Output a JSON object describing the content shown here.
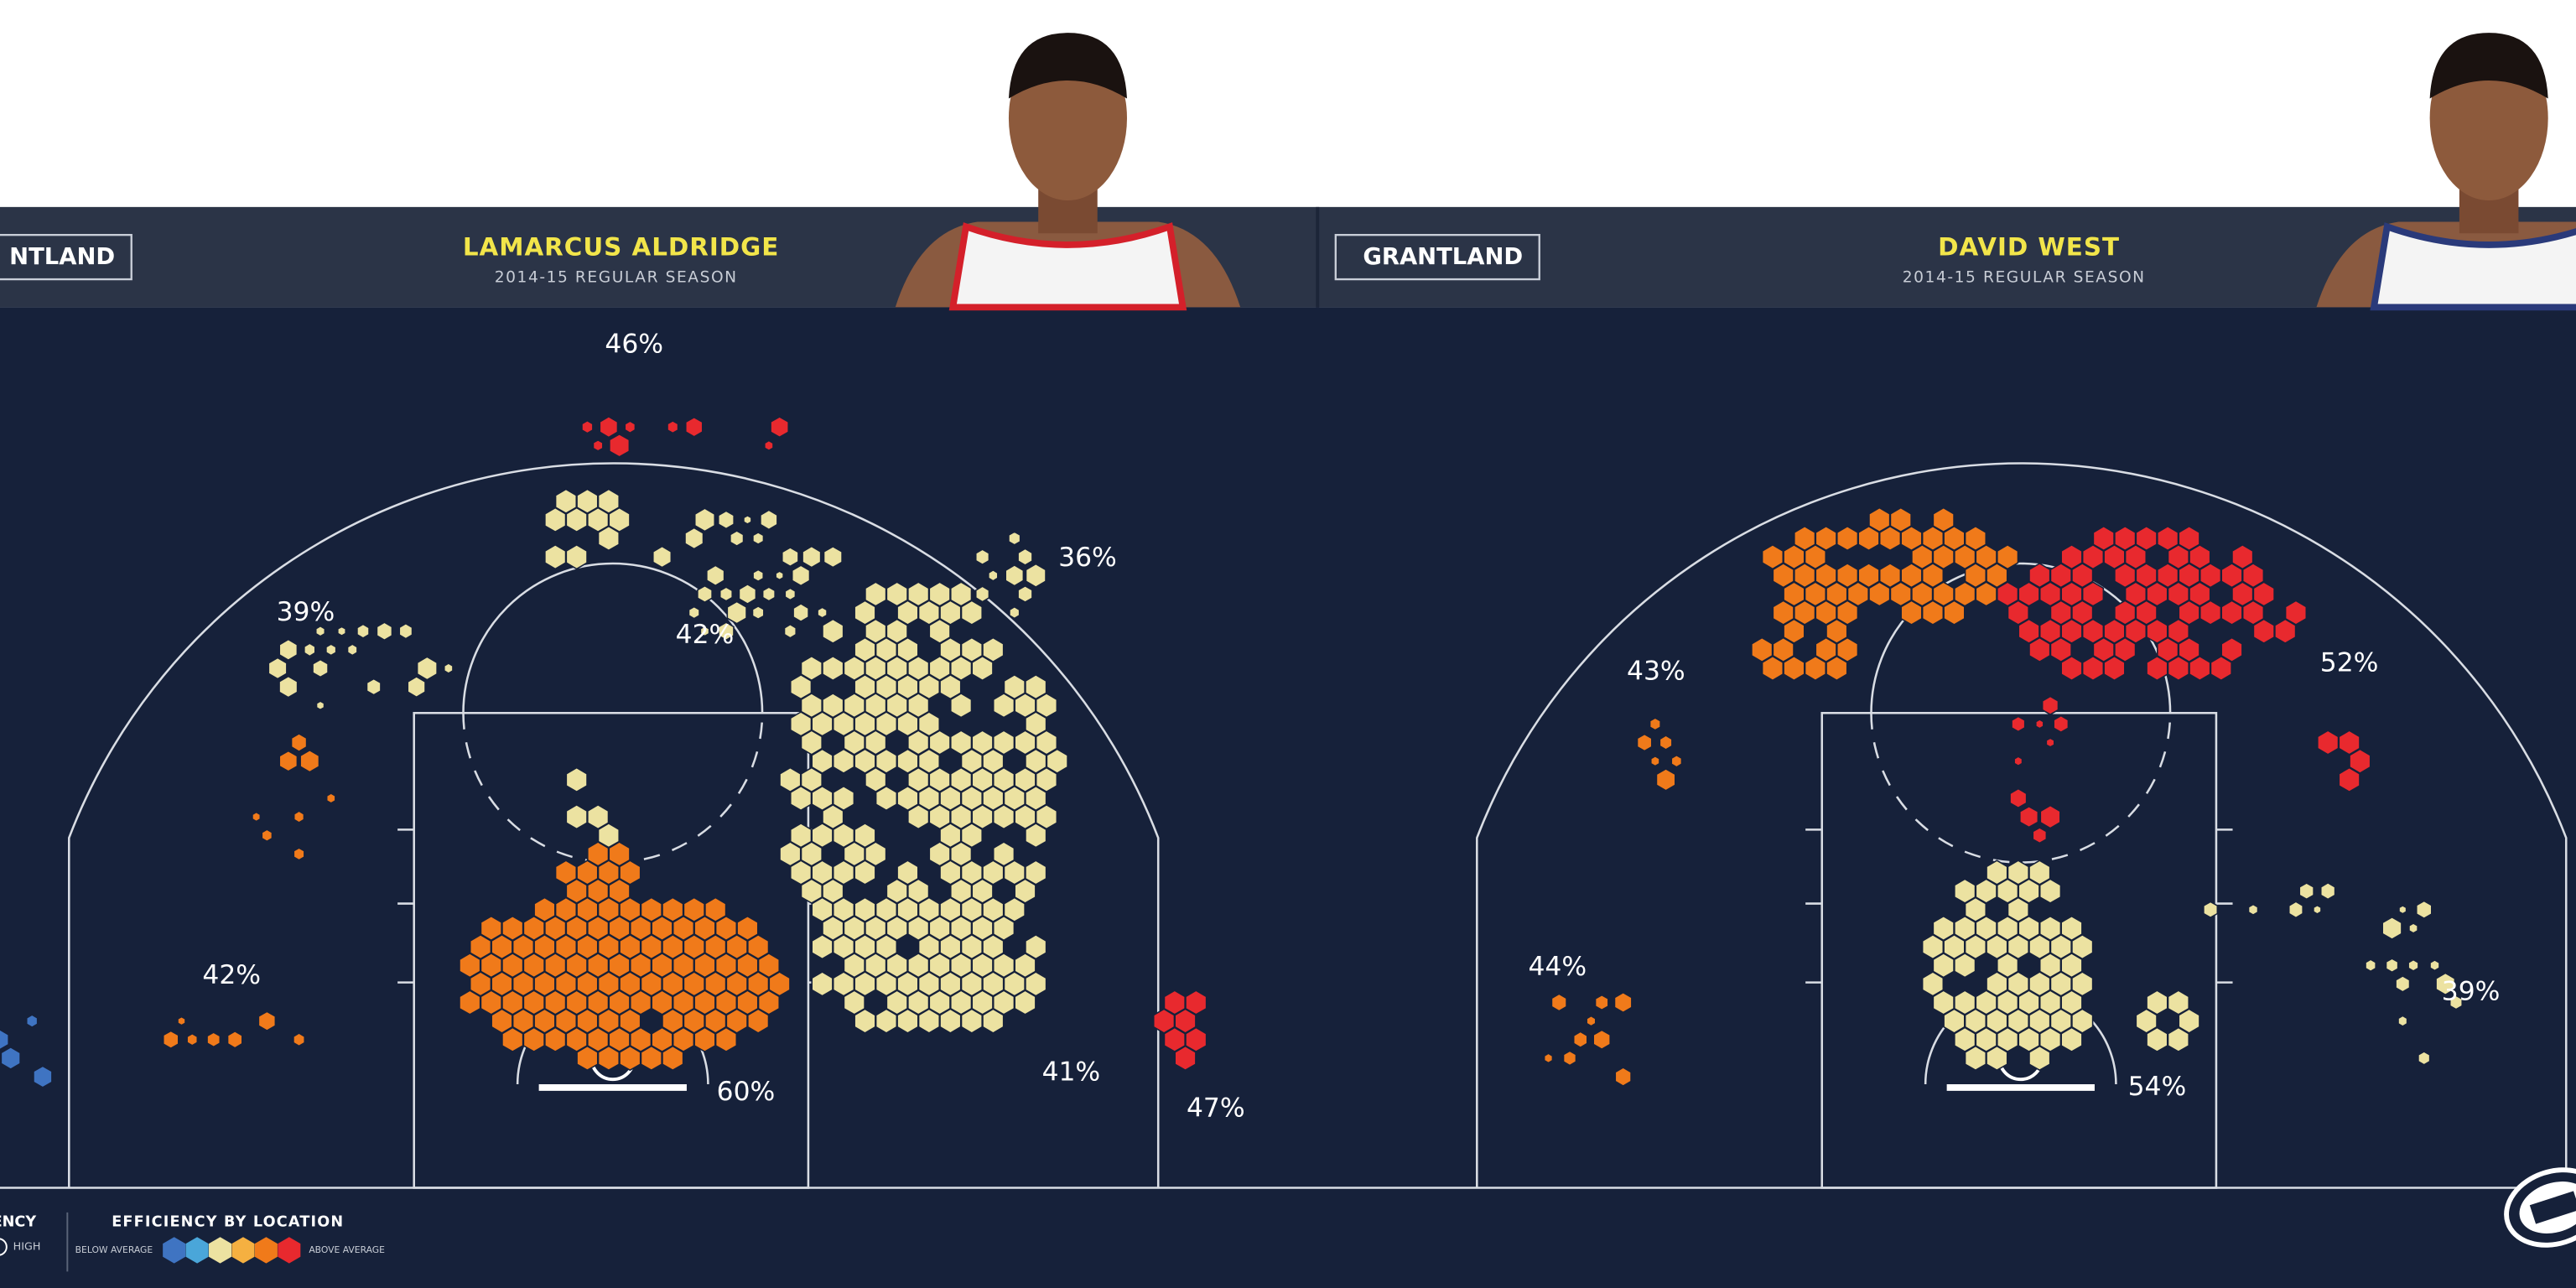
{
  "panels": [
    {
      "brand": "NTLAND",
      "player": "LAMARCUS ALDRIDGE",
      "season": "2014-15 REGULAR SEASON",
      "zones": [
        "46%",
        "36%",
        "39%",
        "42%",
        "42%",
        "60%",
        "41%",
        "47%"
      ]
    },
    {
      "brand": "GRANTLAND",
      "player": "DAVID WEST",
      "season": "2014-15 REGULAR SEASON",
      "zones": [
        "43%",
        "52%",
        "44%",
        "54%",
        "39%"
      ]
    }
  ],
  "legend": {
    "freq_title": "ENCY",
    "freq_high": "HIGH",
    "title": "EFFICIENCY BY LOCATION",
    "below": "BELOW AVERAGE",
    "above": "ABOVE AVERAGE"
  }
}
